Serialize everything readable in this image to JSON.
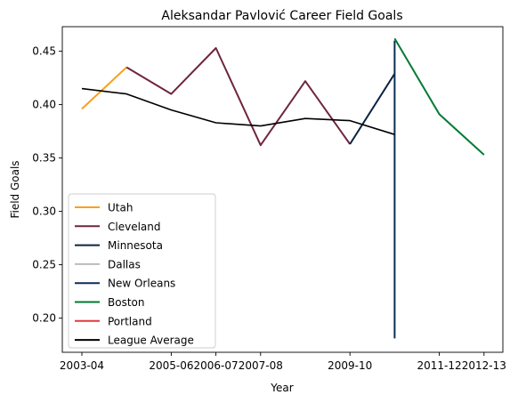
{
  "chart_data": {
    "type": "line",
    "title": "Aleksandar Pavlović Career Field Goals",
    "xlabel": "Year",
    "ylabel": "Field Goals",
    "x_categories": [
      "2003-04",
      "2004-05",
      "2005-06",
      "2006-07",
      "2007-08",
      "2008-09",
      "2009-10",
      "2010-11",
      "2011-12",
      "2012-13"
    ],
    "x_tick_labels": [
      "2003-04",
      "2005-06",
      "2006-07",
      "2007-08",
      "2009-10",
      "2011-12",
      "2012-13"
    ],
    "y_ticks": [
      0.2,
      0.25,
      0.3,
      0.35,
      0.4,
      0.45
    ],
    "y_tick_labels": [
      "0.20",
      "0.25",
      "0.30",
      "0.35",
      "0.40",
      "0.45"
    ],
    "ylim": [
      0.168,
      0.473
    ],
    "grid": false,
    "legend_position": "lower-left",
    "series": [
      {
        "name": "Utah",
        "color": "#f9a01b",
        "points": [
          [
            "2003-04",
            0.396
          ],
          [
            "2004-05",
            0.435
          ]
        ]
      },
      {
        "name": "Cleveland",
        "color": "#6f263d",
        "points": [
          [
            "2004-05",
            0.435
          ],
          [
            "2005-06",
            0.41
          ],
          [
            "2006-07",
            0.453
          ],
          [
            "2007-08",
            0.362
          ],
          [
            "2008-09",
            0.422
          ],
          [
            "2009-10",
            0.363
          ]
        ]
      },
      {
        "name": "Minnesota",
        "color": "#0c2340",
        "points": [
          [
            "2009-10",
            0.363
          ],
          [
            "2010-11",
            0.429
          ]
        ]
      },
      {
        "name": "Dallas",
        "color": "#bbbbbb",
        "points": []
      },
      {
        "name": "New Orleans",
        "color": "#0c2c56",
        "points": [
          [
            "2010-11",
            0.181
          ],
          [
            "2010-11",
            0.46
          ]
        ]
      },
      {
        "name": "Boston",
        "color": "#007a33",
        "points": [
          [
            "2010-11",
            0.462
          ],
          [
            "2011-12",
            0.391
          ],
          [
            "2012-13",
            0.353
          ]
        ]
      },
      {
        "name": "Portland",
        "color": "#e03a3e",
        "points": []
      },
      {
        "name": "League Average",
        "color": "#000000",
        "points": [
          [
            "2003-04",
            0.415
          ],
          [
            "2004-05",
            0.41
          ],
          [
            "2005-06",
            0.395
          ],
          [
            "2006-07",
            0.383
          ],
          [
            "2007-08",
            0.38
          ],
          [
            "2008-09",
            0.387
          ],
          [
            "2009-10",
            0.385
          ],
          [
            "2010-11",
            0.372
          ]
        ]
      }
    ]
  }
}
